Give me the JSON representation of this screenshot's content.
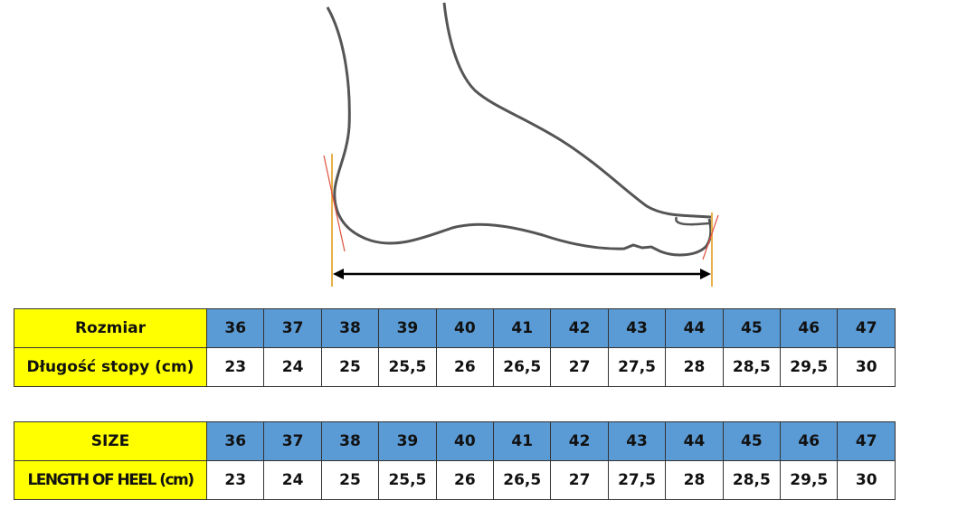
{
  "table_pl": {
    "header_label": "Rozmiar",
    "row_label": "Długość stopy (cm)",
    "sizes": [
      "36",
      "37",
      "38",
      "39",
      "40",
      "41",
      "42",
      "43",
      "44",
      "45",
      "46",
      "47"
    ],
    "lengths": [
      "23",
      "24",
      "25",
      "25,5",
      "26",
      "26,5",
      "27",
      "27,5",
      "28",
      "28,5",
      "29,5",
      "30"
    ]
  },
  "table_en": {
    "header_label": "SIZE",
    "row_label": "LENGTH OF HEEL (cm)",
    "sizes": [
      "36",
      "37",
      "38",
      "39",
      "40",
      "41",
      "42",
      "43",
      "44",
      "45",
      "46",
      "47"
    ],
    "lengths": [
      "23",
      "24",
      "25",
      "25,5",
      "26",
      "26,5",
      "27",
      "27,5",
      "28",
      "28,5",
      "29,5",
      "30"
    ]
  },
  "colors": {
    "header_label_bg": "#ffff00",
    "size_bg": "#5b9bd5",
    "guide_line": "#e8b04a",
    "tangent_line": "#e0503c",
    "outline": "#555555"
  }
}
